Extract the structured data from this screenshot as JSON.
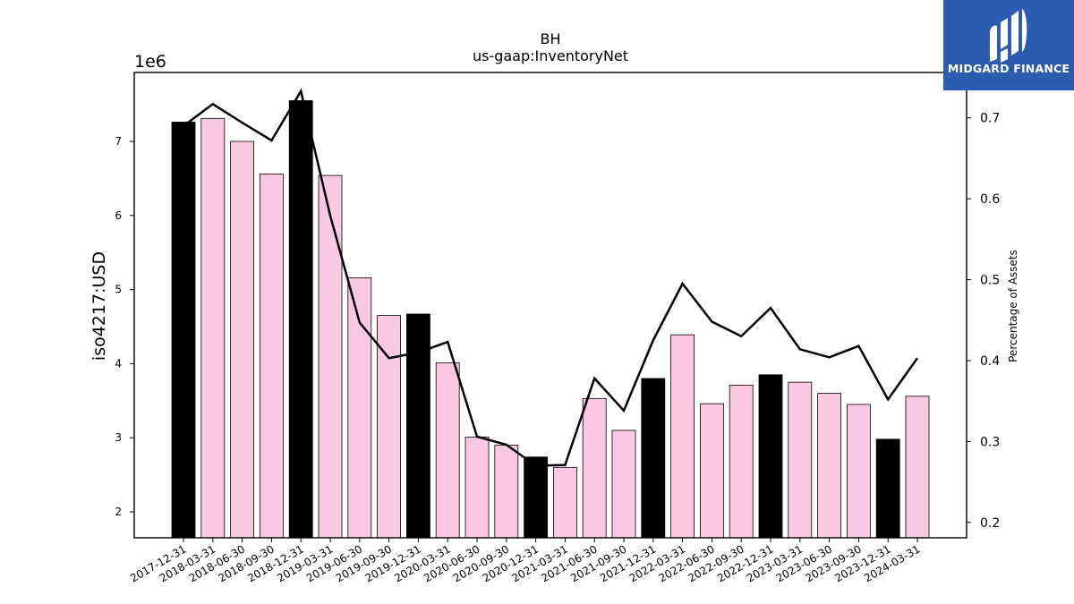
{
  "logo": {
    "text": "MIDGARD FINANCE"
  },
  "chart_data": {
    "type": "bar",
    "title": "BH",
    "subtitle": "us-gaap:InventoryNet",
    "ylabel": "iso4217:USD",
    "ylabel_right": "Percentage of Assets",
    "y_offset_label": "1e6",
    "ylim": [
      1650000,
      7930000
    ],
    "ylim_right": [
      0.181,
      0.756
    ],
    "yticks": [
      2,
      3,
      4,
      5,
      6,
      7
    ],
    "yticks_right": [
      0.2,
      0.3,
      0.4,
      0.5,
      0.6,
      0.7
    ],
    "categories": [
      "2017-12-31",
      "2018-03-31",
      "2018-06-30",
      "2018-09-30",
      "2018-12-31",
      "2019-03-31",
      "2019-06-30",
      "2019-09-30",
      "2019-12-31",
      "2020-03-31",
      "2020-06-30",
      "2020-09-30",
      "2020-12-31",
      "2021-03-31",
      "2021-06-30",
      "2021-09-30",
      "2021-12-31",
      "2022-03-31",
      "2022-06-30",
      "2022-09-30",
      "2022-12-31",
      "2023-03-31",
      "2023-06-30",
      "2023-09-30",
      "2023-12-31",
      "2024-03-31"
    ],
    "series": [
      {
        "type": "bar",
        "values": [
          7260000,
          7310000,
          7000000,
          6560000,
          7550000,
          6540000,
          5160000,
          4650000,
          4670000,
          4010000,
          3010000,
          2900000,
          2740000,
          2600000,
          3530000,
          3100000,
          3800000,
          4390000,
          3460000,
          3710000,
          3850000,
          3750000,
          3600000,
          3450000,
          2980000,
          3560000
        ],
        "annual_color": "#000000",
        "quarter_color": "#fbc8e3",
        "annual_flags": [
          true,
          false,
          false,
          false,
          true,
          false,
          false,
          false,
          true,
          false,
          false,
          false,
          true,
          false,
          false,
          false,
          true,
          false,
          false,
          false,
          true,
          false,
          false,
          false,
          true,
          false
        ]
      },
      {
        "type": "line",
        "axis": "right",
        "color": "#000000",
        "values": [
          0.69,
          0.717,
          0.694,
          0.672,
          0.733,
          0.579,
          0.447,
          0.403,
          0.41,
          0.423,
          0.306,
          0.296,
          0.27,
          0.271,
          0.378,
          0.338,
          0.425,
          0.495,
          0.448,
          0.43,
          0.465,
          0.414,
          0.404,
          0.418,
          0.352,
          0.403
        ]
      }
    ]
  }
}
